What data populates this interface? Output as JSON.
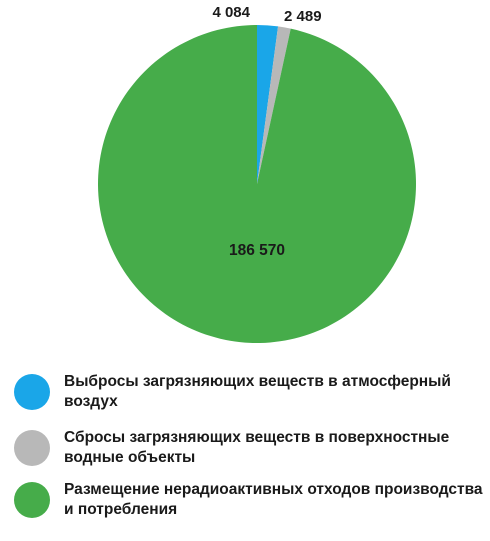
{
  "chart_data": {
    "type": "pie",
    "title": "",
    "slices": [
      {
        "label": "Выбросы загрязняющих веществ в атмосферный воздух",
        "value": 4084,
        "value_label": "4 084",
        "color": "#1aa6e8"
      },
      {
        "label": "Сбросы загрязняющих веществ в поверхностные водные объекты",
        "value": 2489,
        "value_label": "2 489",
        "color": "#b8b8b8"
      },
      {
        "label": "Размещение нерадиоактивных отходов производства и потребления",
        "value": 186570,
        "value_label": "186 570",
        "color": "#46ac4a"
      }
    ],
    "start_angle": "12 o'clock",
    "direction": "clockwise"
  },
  "legend": {
    "items": [
      {
        "label": "Выбросы загрязняющих веществ в атмосферный воздух",
        "color": "#1aa6e8"
      },
      {
        "label": "Сбросы загрязняющих веществ в поверхностные водные объекты",
        "color": "#b8b8b8"
      },
      {
        "label": "Размещение нерадиоактивных отходов производства и потребления",
        "color": "#46ac4a"
      }
    ]
  }
}
